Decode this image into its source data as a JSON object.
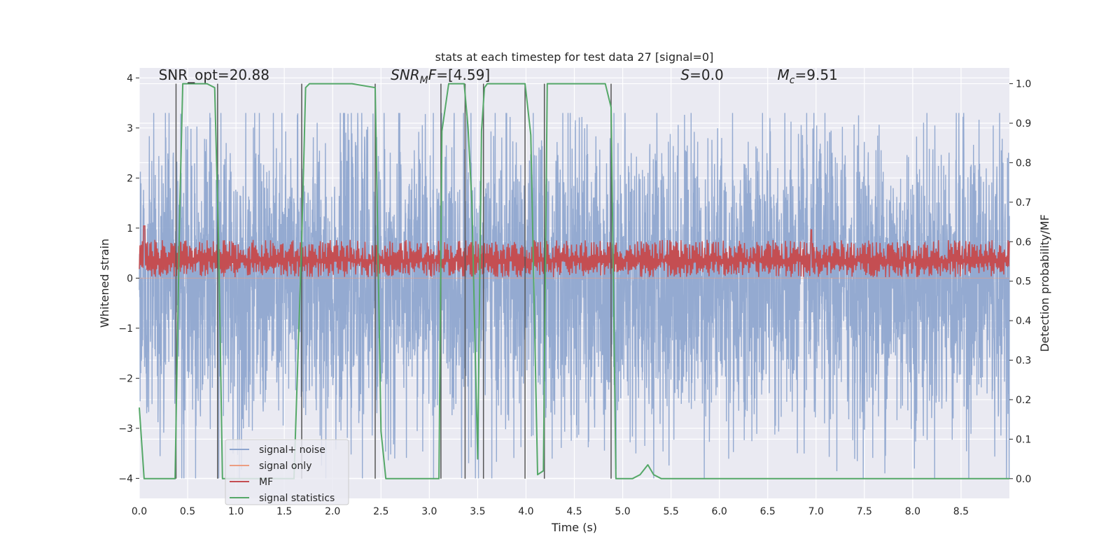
{
  "chart_data": {
    "type": "line",
    "title": "stats at each timestep for test data 27 [signal=0]",
    "xlabel": "Time (s)",
    "ylabel": "Whitened strain",
    "y2label": "Detection probability/MF",
    "xlim": [
      0,
      9
    ],
    "ylim": [
      -4.4,
      4.2
    ],
    "y2lim": [
      -0.05,
      1.04
    ],
    "xticks": [
      "0.0",
      "0.5",
      "1.0",
      "1.5",
      "2.0",
      "2.5",
      "3.0",
      "3.5",
      "4.0",
      "4.5",
      "5.0",
      "5.5",
      "6.0",
      "6.5",
      "7.0",
      "7.5",
      "8.0",
      "8.5"
    ],
    "yticks": [
      "4",
      "3",
      "2",
      "1",
      "0",
      "−1",
      "−2",
      "−3",
      "−4"
    ],
    "y2ticks": [
      "1.0",
      "0.9",
      "0.8",
      "0.7",
      "0.6",
      "0.5",
      "0.4",
      "0.3",
      "0.2",
      "0.1",
      "0.0"
    ],
    "grid": true,
    "legend_position": "lower-left",
    "colors": {
      "background": "#eaeaf2",
      "noise": "#8fa6cf",
      "signal_only": "#ec9d81",
      "mf": "#c44e52",
      "stats": "#55a868",
      "vlines": "#555555"
    },
    "annotations": [
      {
        "text": "SNR_opt=20.88",
        "x": 0.2,
        "y": 1.01
      },
      {
        "text": "SNR_MF=[4.59]",
        "x": 2.6,
        "y": 1.01
      },
      {
        "text": "S=0.0",
        "x": 5.6,
        "y": 1.01
      },
      {
        "text": "M_c=9.51",
        "x": 6.6,
        "y": 1.01
      }
    ],
    "vlines_x": [
      0.38,
      0.81,
      1.68,
      2.44,
      3.12,
      3.37,
      3.56,
      3.99,
      4.19,
      4.88
    ],
    "series": [
      {
        "name": "signal+ noise",
        "kind": "noise",
        "axis": "left",
        "n_samples": 4096,
        "typical_envelope": [
          -1.6,
          1.5
        ],
        "peak_range": [
          -4.0,
          3.3
        ]
      },
      {
        "name": "signal only",
        "kind": "flat",
        "axis": "left",
        "value": 0
      },
      {
        "name": "MF",
        "kind": "band",
        "axis": "right",
        "range": [
          0.51,
          0.6
        ],
        "spikes": [
          [
            0.05,
            0.64
          ],
          [
            6.95,
            0.63
          ]
        ]
      },
      {
        "name": "signal statistics",
        "kind": "line",
        "axis": "right",
        "x": [
          0.0,
          0.05,
          0.1,
          0.2,
          0.3,
          0.37,
          0.42,
          0.45,
          0.5,
          0.6,
          0.7,
          0.78,
          0.82,
          0.86,
          0.9,
          1.0,
          1.2,
          1.4,
          1.6,
          1.68,
          1.72,
          1.76,
          1.8,
          2.0,
          2.2,
          2.44,
          2.5,
          2.55,
          2.6,
          2.8,
          3.0,
          3.1,
          3.13,
          3.2,
          3.25,
          3.32,
          3.36,
          3.4,
          3.44,
          3.5,
          3.54,
          3.57,
          3.6,
          3.7,
          3.8,
          3.99,
          4.05,
          4.12,
          4.18,
          4.22,
          4.3,
          4.5,
          4.7,
          4.82,
          4.88,
          4.93,
          5.0,
          5.1,
          5.18,
          5.26,
          5.32,
          5.4,
          6.0,
          7.0,
          8.0,
          9.0
        ],
        "y": [
          0.18,
          0.0,
          0.0,
          0.0,
          0.0,
          0.0,
          0.7,
          1.0,
          1.0,
          1.0,
          1.0,
          0.99,
          0.6,
          0.0,
          0.0,
          0.0,
          0.0,
          0.0,
          0.0,
          0.6,
          0.99,
          1.0,
          1.0,
          1.0,
          1.0,
          0.99,
          0.12,
          0.0,
          0.0,
          0.0,
          0.0,
          0.0,
          0.88,
          1.0,
          1.0,
          1.0,
          1.0,
          0.89,
          0.7,
          0.05,
          0.88,
          0.99,
          1.0,
          1.0,
          1.0,
          1.0,
          0.87,
          0.01,
          0.02,
          1.0,
          1.0,
          1.0,
          1.0,
          1.0,
          0.94,
          0.0,
          0.0,
          0.0,
          0.01,
          0.035,
          0.01,
          0.0,
          0.0,
          0.0,
          0.0,
          0.0
        ]
      }
    ]
  }
}
